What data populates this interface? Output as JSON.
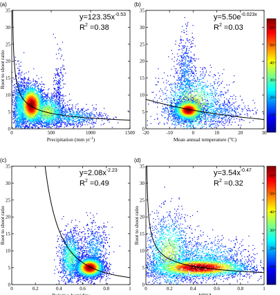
{
  "chart_data": [
    {
      "type": "scatter",
      "panel_label": "(a)",
      "xlabel": "Precipitation (mm yr",
      "xlabel_sup": "-1",
      "xlabel_tail": ")",
      "ylabel": "Root to shoot ratio",
      "xlim": [
        0,
        1500
      ],
      "ylim": [
        0,
        35
      ],
      "xticks": [
        0,
        500,
        1000,
        1500
      ],
      "yticks": [
        0,
        5,
        10,
        15,
        20,
        25,
        30,
        35
      ],
      "fit": {
        "model": "power",
        "a": 123.35,
        "b": -0.53
      },
      "equation_main": "y=123.35x",
      "equation_exp": "-0.53",
      "r2_value": "=0.38",
      "density_clusters": [
        {
          "x": 250,
          "y": 7,
          "sx": 80,
          "sy": 3,
          "n": 2600
        },
        {
          "x": 450,
          "y": 5,
          "sx": 120,
          "sy": 2.5,
          "n": 1400
        },
        {
          "x": 100,
          "y": 6,
          "sx": 45,
          "sy": 5,
          "n": 900
        },
        {
          "x": 750,
          "y": 3.5,
          "sx": 220,
          "sy": 1.5,
          "n": 700
        },
        {
          "x": 600,
          "y": 12,
          "sx": 30,
          "sy": 5,
          "n": 200
        }
      ]
    },
    {
      "type": "scatter",
      "panel_label": "(b)",
      "xlabel": "Mean annual temperature (",
      "xlabel_sup": "o",
      "xlabel_tail": "C)",
      "ylabel": "",
      "xlim": [
        -20,
        30
      ],
      "ylim": [
        0,
        35
      ],
      "xticks": [
        -20,
        -10,
        0,
        10,
        20,
        30
      ],
      "yticks": [
        0,
        5,
        10,
        15,
        20,
        25,
        30,
        35
      ],
      "fit": {
        "model": "exponential",
        "a": 5.5,
        "b": -0.023
      },
      "equation_main": "y=5.50e",
      "equation_exp": "-0.023x",
      "r2_value": "=0.03",
      "density_clusters": [
        {
          "x": -2,
          "y": 5.5,
          "sx": 3,
          "sy": 1.5,
          "n": 2600
        },
        {
          "x": 0,
          "y": 7,
          "sx": 7,
          "sy": 5,
          "n": 1500
        },
        {
          "x": -3,
          "y": 16,
          "sx": 2,
          "sy": 6,
          "n": 500
        },
        {
          "x": 10,
          "y": 5,
          "sx": 8,
          "sy": 2,
          "n": 500
        }
      ],
      "colorbar": {
        "min": 0,
        "max": 65,
        "ticks": [
          10,
          20,
          30,
          40,
          50,
          60
        ]
      }
    },
    {
      "type": "scatter",
      "panel_label": "(c)",
      "xlabel": "Relative humidity",
      "xlabel_sup": "",
      "xlabel_tail": "",
      "ylabel": "Root to shoot ratio",
      "xlim": [
        0,
        1
      ],
      "ylim": [
        0,
        35
      ],
      "xticks": [
        0,
        0.2,
        0.4,
        0.6,
        0.8,
        1
      ],
      "yticks": [
        0,
        5,
        10,
        15,
        20,
        25,
        30,
        35
      ],
      "fit": {
        "model": "power",
        "a": 2.08,
        "b": -2.23
      },
      "equation_main": "y=2.08x",
      "equation_exp": "-2.23",
      "r2_value": "=0.49",
      "density_clusters": [
        {
          "x": 0.66,
          "y": 5,
          "sx": 0.06,
          "sy": 1.5,
          "n": 2600
        },
        {
          "x": 0.5,
          "y": 8,
          "sx": 0.05,
          "sy": 4,
          "n": 1100
        },
        {
          "x": 0.7,
          "y": 10,
          "sx": 0.06,
          "sy": 4,
          "n": 600
        }
      ]
    },
    {
      "type": "scatter",
      "panel_label": "(d)",
      "xlabel": "NDVI",
      "xlabel_sup": "",
      "xlabel_tail": "",
      "ylabel": "Root to shoot ratio",
      "xlim": [
        0,
        1
      ],
      "ylim": [
        0,
        35
      ],
      "xticks": [
        0,
        0.2,
        0.4,
        0.6,
        0.8,
        1
      ],
      "yticks": [
        0,
        5,
        10,
        15,
        20,
        25,
        30,
        35
      ],
      "fit": {
        "model": "power",
        "a": 3.54,
        "b": -0.47
      },
      "equation_main": "y=3.54x",
      "equation_exp": "-0.47",
      "r2_value": "=0.32",
      "density_clusters": [
        {
          "x": 0.45,
          "y": 5,
          "sx": 0.22,
          "sy": 1.5,
          "n": 3000
        },
        {
          "x": 0.2,
          "y": 9,
          "sx": 0.1,
          "sy": 6,
          "n": 1400
        },
        {
          "x": 0.5,
          "y": 8,
          "sx": 0.2,
          "sy": 3,
          "n": 800
        }
      ],
      "colorbar": {
        "min": 0,
        "max": 65,
        "ticks": [
          10,
          20,
          30,
          40,
          50,
          60
        ]
      }
    }
  ]
}
